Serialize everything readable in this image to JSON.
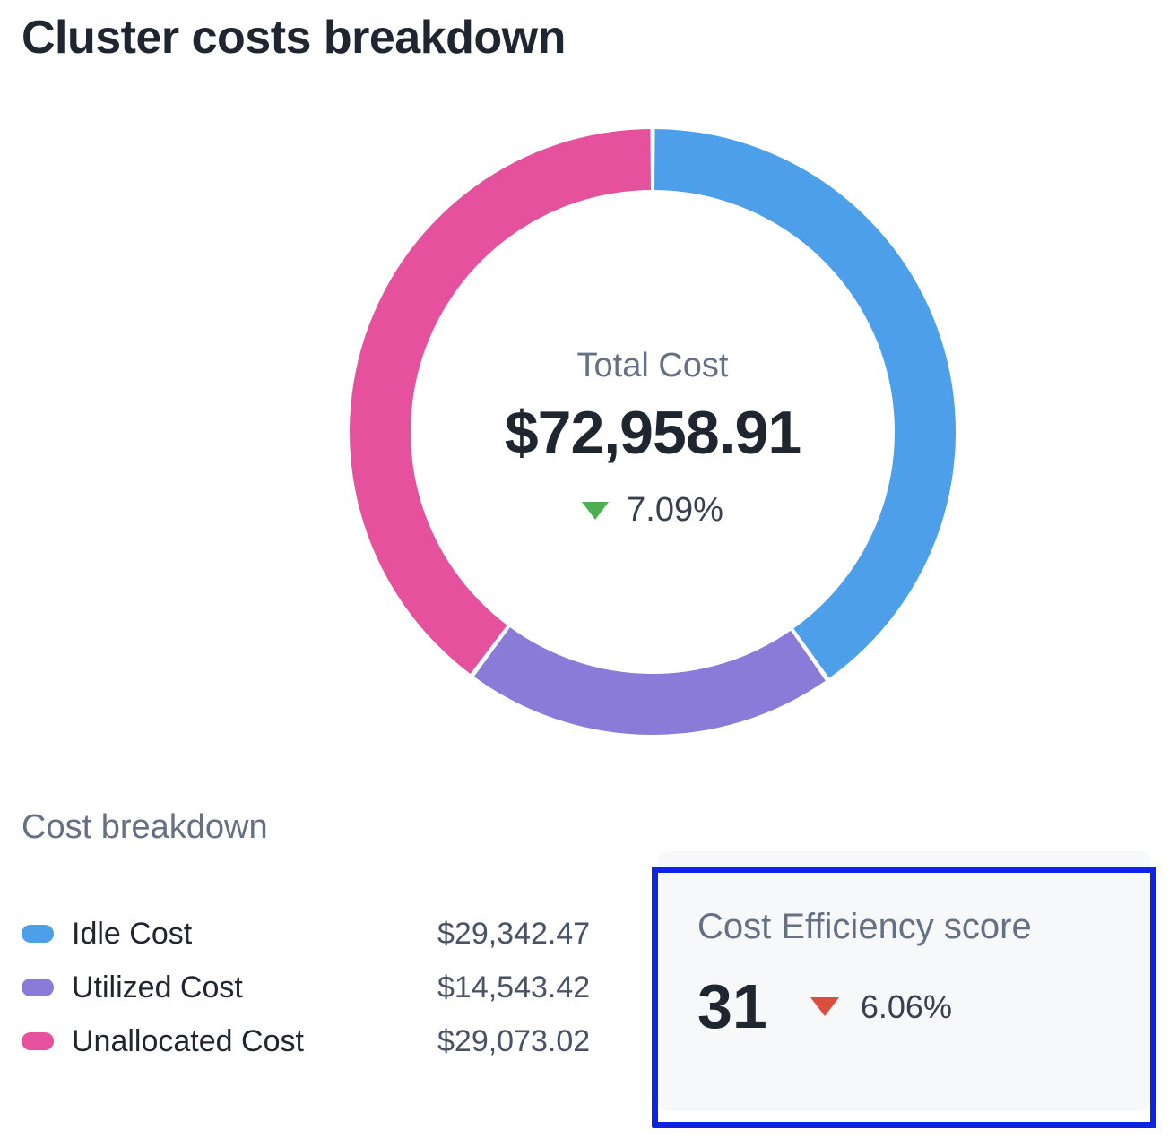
{
  "title": "Cluster costs breakdown",
  "colors": {
    "dark_text": "#20262F",
    "muted_text": "#667085",
    "value_text": "#4A5268",
    "change_text": "#39404F",
    "increase_green": "#4CAF50",
    "decrease_red": "#D94E3F",
    "card_background": "#F7F8FA",
    "highlight_border": "#0D23E6"
  },
  "chart_data": {
    "type": "pie",
    "donut": true,
    "title": "Cluster costs breakdown",
    "total_value": 72958.91,
    "center": {
      "label": "Total Cost",
      "value_display": "$72,958.91",
      "change": {
        "value": "7.09%",
        "direction": "down",
        "color": "#4CAF50"
      }
    },
    "segments": [
      {
        "label": "Idle Cost",
        "value": 29342.47,
        "display": "$29,342.47",
        "percent": 40.2,
        "color": "#4D9FEA"
      },
      {
        "label": "Utilized Cost",
        "value": 14543.42,
        "display": "$14,543.42",
        "percent": 19.9,
        "color": "#8A7BD8"
      },
      {
        "label": "Unallocated Cost",
        "value": 29073.02,
        "display": "$29,073.02",
        "percent": 39.9,
        "color": "#E5519C"
      }
    ],
    "start_angle_deg": 0,
    "direction": "clockwise",
    "legend_position": "bottom-left"
  },
  "breakdown": {
    "heading": "Cost breakdown"
  },
  "efficiency_card": {
    "title": "Cost Efficiency score",
    "score": "31",
    "change": {
      "value": "6.06%",
      "direction": "down",
      "color": "#D94E3F"
    }
  }
}
